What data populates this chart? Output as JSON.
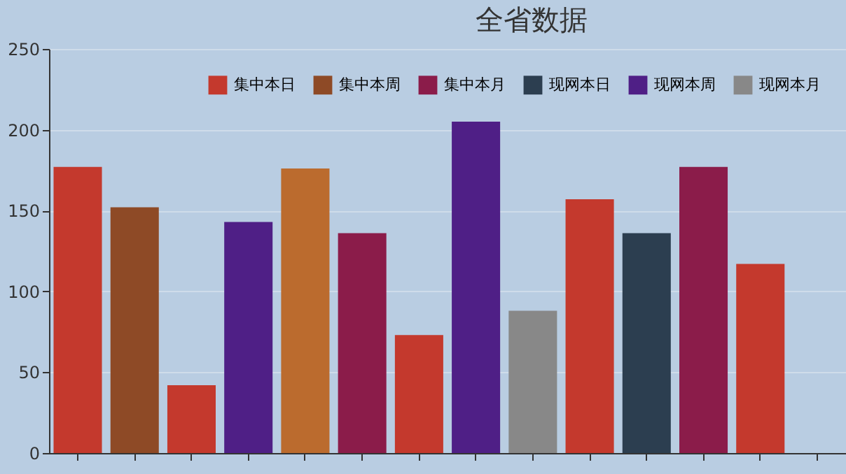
{
  "chart_data": {
    "type": "bar",
    "title": "全省数据",
    "categories": [
      null,
      null,
      null,
      null,
      null,
      null,
      null,
      null,
      null,
      null,
      null,
      null,
      null,
      null
    ],
    "stacked": true,
    "series": [
      {
        "name": "集中本日",
        "color": "#c4392d",
        "values": [
          177,
          null,
          42,
          null,
          null,
          null,
          73,
          null,
          null,
          157,
          null,
          null,
          117,
          null
        ]
      },
      {
        "name": "集中本周",
        "color": "#8e4a26",
        "colors": [
          null,
          null,
          null,
          null,
          "#bb6b2e",
          null,
          null,
          null,
          null,
          null,
          null,
          null,
          null,
          null
        ],
        "values": [
          null,
          152,
          null,
          null,
          176,
          null,
          null,
          null,
          null,
          null,
          null,
          null,
          null,
          null
        ]
      },
      {
        "name": "集中本月",
        "color": "#8b1c4a",
        "values": [
          null,
          null,
          null,
          null,
          null,
          136,
          null,
          null,
          null,
          null,
          null,
          177,
          null,
          null
        ]
      },
      {
        "name": "现网本日",
        "color": "#2c3e50",
        "values": [
          null,
          null,
          null,
          null,
          null,
          null,
          null,
          null,
          null,
          null,
          136,
          null,
          null,
          null
        ]
      },
      {
        "name": "现网本周",
        "color": "#4f1f86",
        "values": [
          null,
          null,
          null,
          143,
          null,
          null,
          null,
          205,
          null,
          null,
          null,
          null,
          null,
          null
        ]
      },
      {
        "name": "现网本月",
        "color": "#888888",
        "values": [
          null,
          null,
          null,
          null,
          null,
          null,
          null,
          null,
          88,
          null,
          null,
          null,
          null,
          null
        ]
      }
    ],
    "ylim": [
      0,
      250
    ],
    "yticks": [
      0,
      50,
      100,
      150,
      200,
      250
    ],
    "grid": "y",
    "legend": "top right"
  }
}
